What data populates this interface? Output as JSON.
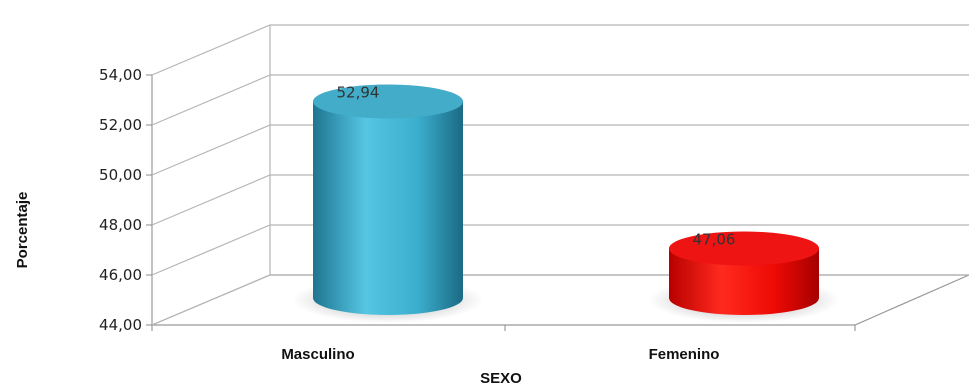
{
  "chart_data": {
    "type": "bar",
    "style": "3d-cylinder",
    "categories": [
      "Masculino",
      "Femenino"
    ],
    "values": [
      52.94,
      47.06
    ],
    "value_labels": [
      "52,94",
      "47,06"
    ],
    "colors": [
      "#33a5c4",
      "#ee0000"
    ],
    "title": "",
    "xlabel": "SEXO",
    "ylabel": "Porcentaje",
    "ylim": [
      44,
      54
    ],
    "yticks": [
      44,
      46,
      48,
      50,
      52,
      54
    ],
    "ytick_labels": [
      "44,00",
      "46,00",
      "48,00",
      "50,00",
      "52,00",
      "54,00"
    ],
    "grid": true,
    "legend": "none"
  }
}
